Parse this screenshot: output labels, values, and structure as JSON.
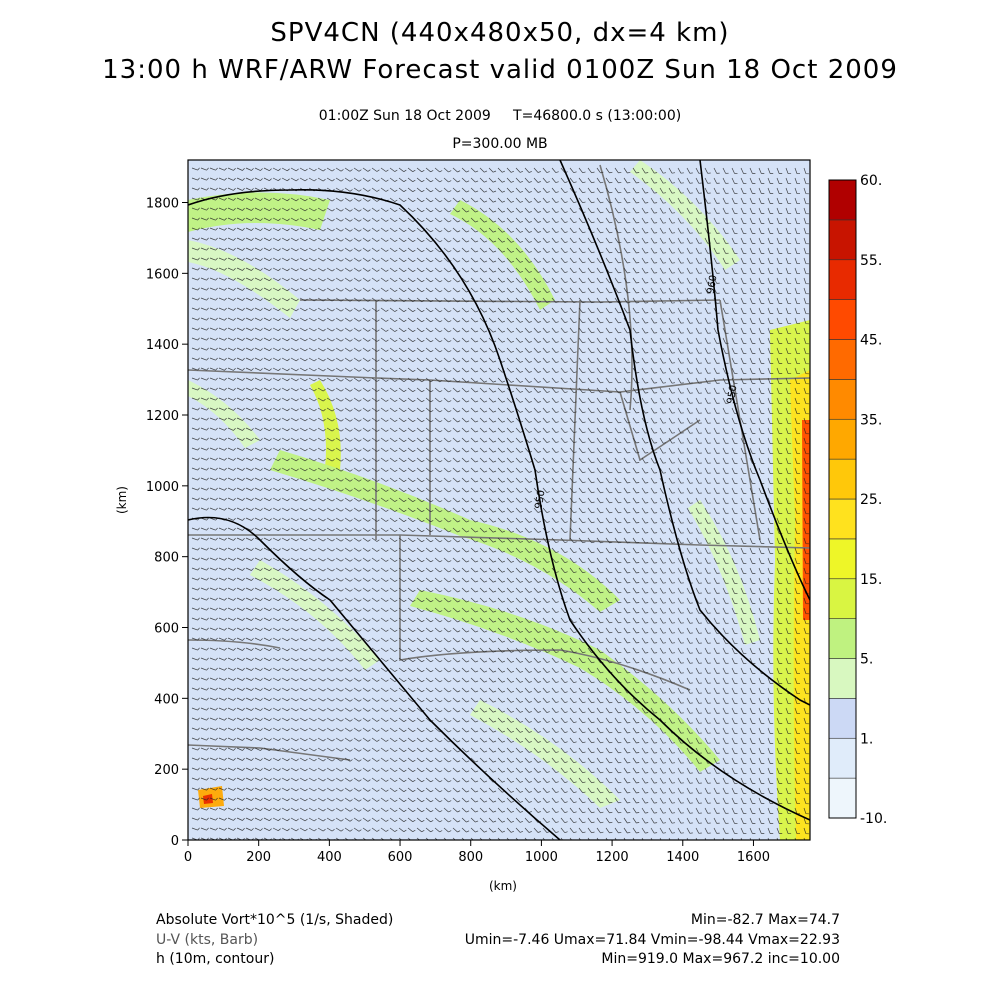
{
  "header": {
    "title_line1": "SPV4CN (440x480x50, dx=4 km)",
    "title_line2": "13:00 h WRF/ARW Forecast valid 0100Z Sun 18 Oct 2009",
    "subtitle_time": "01:00Z Sun 18 Oct 2009     T=46800.0 s (13:00:00)",
    "subtitle_level": "P=300.00 MB"
  },
  "chart_data": {
    "type": "heatmap",
    "title": "SPV4CN (440x480x50, dx=4 km)",
    "xlabel": "(km)",
    "ylabel": "(km)",
    "xlim": [
      0,
      1760
    ],
    "ylim": [
      0,
      1920
    ],
    "x_ticks": [
      0,
      200,
      400,
      600,
      800,
      1000,
      1200,
      1400,
      1600
    ],
    "y_ticks": [
      0,
      200,
      400,
      600,
      800,
      1000,
      1200,
      1400,
      1600,
      1800
    ],
    "colorbar": {
      "levels": [
        -10,
        1,
        5,
        15,
        25,
        35,
        45,
        55,
        60
      ],
      "tick_labels": [
        "-10.",
        "1.",
        "5.",
        "15.",
        "25.",
        "35.",
        "45.",
        "55.",
        "60."
      ],
      "colors": [
        "#eef6fc",
        "#e0ecfa",
        "#ccd9f5",
        "#d8f8c0",
        "#bff280",
        "#d9f542",
        "#eef628",
        "#ffe21e",
        "#ffc80a",
        "#ffa800",
        "#ff8a00",
        "#ff6a00",
        "#ff4a00",
        "#e82a00",
        "#c81400",
        "#b00000"
      ]
    },
    "contour_labels": [
      "960",
      "950",
      "950"
    ],
    "fields": [
      {
        "name": "Absolute Vort*10^5 (1/s, Shaded)",
        "min": -82.7,
        "max": 74.7
      },
      {
        "name": "U-V (kts, Barb)",
        "umin": -7.46,
        "umax": 71.84,
        "vmin": -98.44,
        "vmax": 22.93
      },
      {
        "name": "h (10m, contour)",
        "min": 919.0,
        "max": 967.2,
        "inc": 10.0
      }
    ]
  },
  "footer": {
    "left_line1": "Absolute Vort*10^5 (1/s, Shaded)",
    "left_line2": "U-V (kts, Barb)",
    "left_line3": "h (10m, contour)",
    "right_line1": "Min=-82.7 Max=74.7",
    "right_line2": "Umin=-7.46 Umax=71.84 Vmin=-98.44 Vmax=22.93",
    "right_line3": "Min=919.0 Max=967.2 inc=10.00"
  },
  "colors": {
    "frame": "#000000",
    "barb": "#222222",
    "map_lines": "#777777",
    "contour": "#000000"
  }
}
